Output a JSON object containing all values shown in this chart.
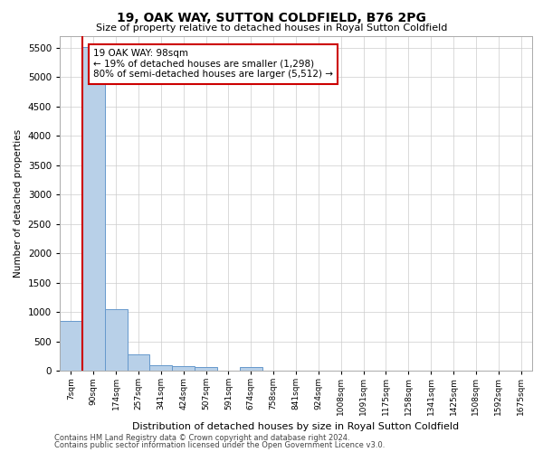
{
  "title1": "19, OAK WAY, SUTTON COLDFIELD, B76 2PG",
  "title2": "Size of property relative to detached houses in Royal Sutton Coldfield",
  "xlabel": "Distribution of detached houses by size in Royal Sutton Coldfield",
  "ylabel": "Number of detached properties",
  "footnote1": "Contains HM Land Registry data © Crown copyright and database right 2024.",
  "footnote2": "Contains public sector information licensed under the Open Government Licence v3.0.",
  "annotation_line1": "19 OAK WAY: 98sqm",
  "annotation_line2": "← 19% of detached houses are smaller (1,298)",
  "annotation_line3": "80% of semi-detached houses are larger (5,512) →",
  "bar_color": "#b8d0e8",
  "bar_edge_color": "#6699cc",
  "ref_line_color": "#cc0000",
  "annotation_box_color": "#cc0000",
  "categories": [
    "7sqm",
    "90sqm",
    "174sqm",
    "257sqm",
    "341sqm",
    "424sqm",
    "507sqm",
    "591sqm",
    "674sqm",
    "758sqm",
    "841sqm",
    "924sqm",
    "1008sqm",
    "1091sqm",
    "1175sqm",
    "1258sqm",
    "1341sqm",
    "1425sqm",
    "1508sqm",
    "1592sqm",
    "1675sqm"
  ],
  "values": [
    850,
    5510,
    1055,
    280,
    90,
    75,
    60,
    0,
    55,
    0,
    0,
    0,
    0,
    0,
    0,
    0,
    0,
    0,
    0,
    0,
    0
  ],
  "ylim": [
    0,
    5700
  ],
  "yticks": [
    0,
    500,
    1000,
    1500,
    2000,
    2500,
    3000,
    3500,
    4000,
    4500,
    5000,
    5500
  ],
  "background_color": "#ffffff",
  "grid_color": "#cccccc"
}
